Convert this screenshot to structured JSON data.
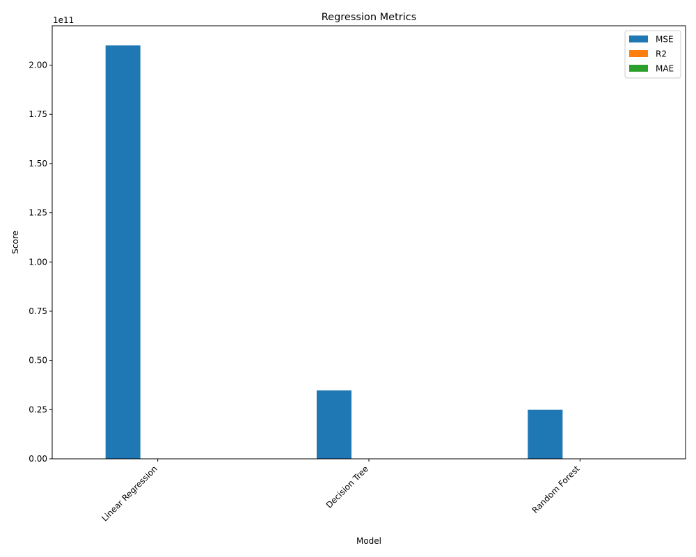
{
  "chart_data": {
    "type": "bar",
    "title": "Regression Metrics",
    "xlabel": "Model",
    "ylabel": "Score",
    "y_offset_label": "1e11",
    "categories": [
      "Linear Regression",
      "Decision Tree",
      "Random Forest"
    ],
    "series": [
      {
        "name": "MSE",
        "color": "#1f77b4",
        "values": [
          210000000000,
          34800000000,
          24900000000
        ]
      },
      {
        "name": "R2",
        "color": "#ff7f0e",
        "values": [
          0.2,
          0.87,
          0.91
        ]
      },
      {
        "name": "MAE",
        "color": "#2ca02c",
        "values": [
          360000,
          120000,
          105000
        ]
      }
    ],
    "ylim": [
      0,
      220000000000
    ],
    "y_ticks": [
      0,
      25000000000,
      50000000000,
      75000000000,
      100000000000,
      125000000000,
      150000000000,
      175000000000,
      200000000000
    ],
    "y_tick_labels": [
      "0.00",
      "0.25",
      "0.50",
      "0.75",
      "1.00",
      "1.25",
      "1.50",
      "1.75",
      "2.00"
    ],
    "grid": false,
    "legend_position": "top-right"
  }
}
